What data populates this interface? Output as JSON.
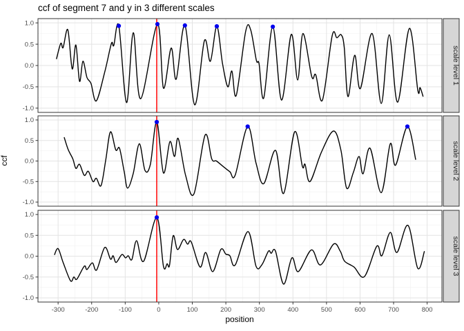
{
  "title": "ccf of segment 7 and y in 3 different scales",
  "chart_data": {
    "type": "line",
    "title": "ccf of segment 7 and y in 3 different scales",
    "xlabel": "position",
    "ylabel": "ccf",
    "x_ticks": [
      -300,
      -200,
      -100,
      0,
      100,
      200,
      300,
      400,
      500,
      600,
      700,
      800
    ],
    "y_tick_labels": [
      "1.0",
      "0.5",
      "0.0",
      "-0.5",
      "-1.0"
    ],
    "y_tick_values": [
      1.0,
      0.5,
      0.0,
      -0.5,
      -1.0
    ],
    "x_range": [
      -360,
      844
    ],
    "y_range": [
      -1.1,
      1.1
    ],
    "grid": true,
    "legend": "none",
    "vline_x": -6,
    "facets": [
      {
        "label": "scale level 1",
        "line": [
          [
            -305,
            0.15
          ],
          [
            -292,
            0.52
          ],
          [
            -285,
            0.42
          ],
          [
            -271,
            0.84
          ],
          [
            -258,
            -0.08
          ],
          [
            -247,
            0.48
          ],
          [
            -236,
            -0.37
          ],
          [
            -226,
            0.1
          ],
          [
            -214,
            -0.28
          ],
          [
            -202,
            -0.42
          ],
          [
            -186,
            -0.83
          ],
          [
            -160,
            -0.12
          ],
          [
            -141,
            0.52
          ],
          [
            -134,
            0.47
          ],
          [
            -119,
            0.93
          ],
          [
            -96,
            -0.87
          ],
          [
            -76,
            0.77
          ],
          [
            -54,
            -0.78
          ],
          [
            -4,
            0.97
          ],
          [
            14,
            -0.53
          ],
          [
            37,
            0.41
          ],
          [
            52,
            -0.32
          ],
          [
            78,
            0.94
          ],
          [
            107,
            -0.92
          ],
          [
            136,
            0.58
          ],
          [
            154,
            0.1
          ],
          [
            173,
            0.92
          ],
          [
            190,
            0.05
          ],
          [
            206,
            -0.5
          ],
          [
            218,
            -0.13
          ],
          [
            231,
            -0.7
          ],
          [
            259,
            0.8
          ],
          [
            274,
            0.84
          ],
          [
            291,
            0.12
          ],
          [
            299,
            0.04
          ],
          [
            313,
            -0.76
          ],
          [
            340,
            0.91
          ],
          [
            366,
            -0.81
          ],
          [
            395,
            0.73
          ],
          [
            414,
            -0.34
          ],
          [
            430,
            0.75
          ],
          [
            456,
            -0.26
          ],
          [
            468,
            -0.22
          ],
          [
            488,
            -0.81
          ],
          [
            517,
            0.7
          ],
          [
            531,
            0.65
          ],
          [
            544,
            0.72
          ],
          [
            553,
            0.42
          ],
          [
            564,
            -0.73
          ],
          [
            584,
            0.24
          ],
          [
            601,
            -0.54
          ],
          [
            636,
            0.75
          ],
          [
            663,
            -0.89
          ],
          [
            687,
            0.72
          ],
          [
            712,
            -0.86
          ],
          [
            747,
            0.87
          ],
          [
            772,
            -0.57
          ],
          [
            779,
            -0.52
          ],
          [
            788,
            -0.73
          ]
        ],
        "markers": [
          [
            -119,
            0.93
          ],
          [
            -4,
            0.97
          ],
          [
            78,
            0.94
          ],
          [
            173,
            0.92
          ],
          [
            340,
            0.91
          ]
        ]
      },
      {
        "label": "scale level 2",
        "line": [
          [
            -282,
            0.58
          ],
          [
            -270,
            0.28
          ],
          [
            -256,
            0.05
          ],
          [
            -247,
            -0.18
          ],
          [
            -236,
            -0.08
          ],
          [
            -222,
            -0.35
          ],
          [
            -210,
            -0.25
          ],
          [
            -196,
            -0.5
          ],
          [
            -186,
            -0.42
          ],
          [
            -172,
            -0.6
          ],
          [
            -158,
            0.02
          ],
          [
            -144,
            0.71
          ],
          [
            -128,
            0.27
          ],
          [
            -117,
            0.31
          ],
          [
            -103,
            -0.26
          ],
          [
            -93,
            -0.66
          ],
          [
            -76,
            -0.3
          ],
          [
            -58,
            0.42
          ],
          [
            -41,
            -0.23
          ],
          [
            -25,
            -0.08
          ],
          [
            -6,
            0.95
          ],
          [
            14,
            -0.29
          ],
          [
            33,
            0.47
          ],
          [
            47,
            0.11
          ],
          [
            58,
            0.55
          ],
          [
            80,
            -0.35
          ],
          [
            105,
            -0.8
          ],
          [
            138,
            0.63
          ],
          [
            158,
            0.05
          ],
          [
            172,
            0.0
          ],
          [
            193,
            -0.14
          ],
          [
            212,
            -0.26
          ],
          [
            228,
            -0.34
          ],
          [
            265,
            0.84
          ],
          [
            290,
            -0.05
          ],
          [
            313,
            -0.55
          ],
          [
            348,
            0.26
          ],
          [
            372,
            -0.79
          ],
          [
            405,
            0.71
          ],
          [
            428,
            -0.13
          ],
          [
            436,
            -0.08
          ],
          [
            451,
            -0.5
          ],
          [
            485,
            0.22
          ],
          [
            521,
            0.73
          ],
          [
            543,
            0.26
          ],
          [
            560,
            -0.66
          ],
          [
            580,
            -0.28
          ],
          [
            597,
            0.11
          ],
          [
            609,
            -0.31
          ],
          [
            630,
            0.31
          ],
          [
            663,
            -0.77
          ],
          [
            690,
            0.42
          ],
          [
            706,
            -0.1
          ],
          [
            741,
            0.84
          ],
          [
            766,
            0.03
          ]
        ],
        "markers": [
          [
            -6,
            0.95
          ],
          [
            265,
            0.84
          ],
          [
            741,
            0.84
          ]
        ]
      },
      {
        "label": "scale level 3",
        "line": [
          [
            -311,
            0.03
          ],
          [
            -300,
            0.18
          ],
          [
            -285,
            -0.15
          ],
          [
            -263,
            -0.59
          ],
          [
            -253,
            -0.5
          ],
          [
            -244,
            -0.55
          ],
          [
            -222,
            -0.24
          ],
          [
            -214,
            -0.32
          ],
          [
            -198,
            -0.16
          ],
          [
            -185,
            -0.33
          ],
          [
            -161,
            0.21
          ],
          [
            -144,
            -0.07
          ],
          [
            -136,
            0.01
          ],
          [
            -127,
            -0.15
          ],
          [
            -110,
            0.04
          ],
          [
            -99,
            -0.04
          ],
          [
            -91,
            0.01
          ],
          [
            -80,
            -0.08
          ],
          [
            -66,
            0.37
          ],
          [
            -45,
            -0.12
          ],
          [
            -6,
            0.93
          ],
          [
            14,
            -0.24
          ],
          [
            25,
            -0.18
          ],
          [
            32,
            -0.22
          ],
          [
            43,
            0.49
          ],
          [
            56,
            0.16
          ],
          [
            74,
            0.4
          ],
          [
            86,
            0.29
          ],
          [
            97,
            0.34
          ],
          [
            123,
            -0.26
          ],
          [
            140,
            0.09
          ],
          [
            161,
            -0.37
          ],
          [
            185,
            0.16
          ],
          [
            200,
            0.05
          ],
          [
            212,
            0.01
          ],
          [
            228,
            -0.21
          ],
          [
            266,
            0.59
          ],
          [
            290,
            -0.24
          ],
          [
            307,
            -0.21
          ],
          [
            327,
            0.12
          ],
          [
            335,
            0.07
          ],
          [
            348,
            0.12
          ],
          [
            372,
            -0.67
          ],
          [
            397,
            -0.04
          ],
          [
            416,
            -0.37
          ],
          [
            455,
            0.15
          ],
          [
            482,
            -0.21
          ],
          [
            521,
            0.29
          ],
          [
            541,
            0.12
          ],
          [
            554,
            -0.12
          ],
          [
            582,
            -0.26
          ],
          [
            613,
            -0.49
          ],
          [
            650,
            0.24
          ],
          [
            665,
            0.01
          ],
          [
            690,
            0.57
          ],
          [
            710,
            0.09
          ],
          [
            743,
            0.74
          ],
          [
            772,
            -0.29
          ],
          [
            792,
            0.12
          ]
        ],
        "markers": [
          [
            -6,
            0.93
          ]
        ]
      }
    ]
  },
  "colors": {
    "line": "#000000",
    "marker": "#0000ee",
    "vline": "#ff0000",
    "grid_major": "#e3e3e3",
    "grid_minor": "#f0f0f0",
    "panel_border": "#333333",
    "strip_fill": "#d6d6d6",
    "strip_border": "#333333",
    "tick_label": "#4d4d4d",
    "tick_mark": "#333333",
    "background": "#ffffff"
  }
}
